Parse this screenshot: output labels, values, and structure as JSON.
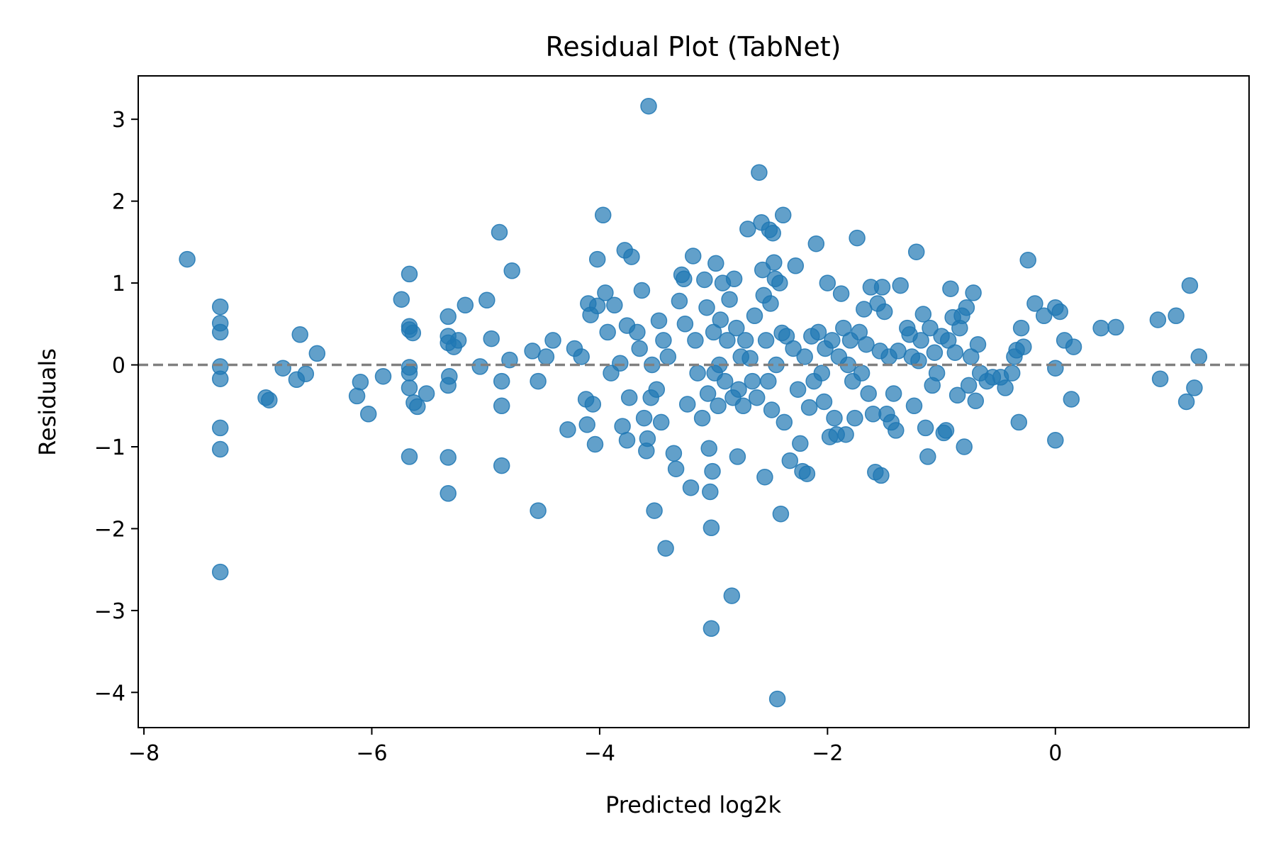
{
  "chart_data": {
    "type": "scatter",
    "title": "Residual Plot (TabNet)",
    "xlabel": "Predicted log2k",
    "ylabel": "Residuals",
    "xlim": [
      -8.05,
      1.7
    ],
    "ylim": [
      -4.43,
      3.53
    ],
    "xticks": [
      -8,
      -6,
      -4,
      -2,
      0
    ],
    "yticks": [
      -4,
      -3,
      -2,
      -1,
      0,
      1,
      2,
      3
    ],
    "xtick_labels": [
      "−8",
      "−6",
      "−4",
      "−2",
      "0"
    ],
    "ytick_labels": [
      "−4",
      "−3",
      "−2",
      "−1",
      "0",
      "1",
      "2",
      "3"
    ],
    "grid": false,
    "reference_line": {
      "y": 0,
      "style": "dashed",
      "color": "#808080"
    },
    "marker_color": "#1f77b4",
    "marker_alpha": 0.7,
    "points": [
      [
        -7.62,
        1.29
      ],
      [
        -7.33,
        0.71
      ],
      [
        -7.33,
        0.51
      ],
      [
        -7.33,
        0.4
      ],
      [
        -7.33,
        -0.02
      ],
      [
        -7.33,
        -0.17
      ],
      [
        -7.33,
        -0.77
      ],
      [
        -7.33,
        -1.03
      ],
      [
        -7.33,
        -2.53
      ],
      [
        -6.93,
        -0.4
      ],
      [
        -6.9,
        -0.43
      ],
      [
        -6.78,
        -0.04
      ],
      [
        -6.66,
        -0.18
      ],
      [
        -6.63,
        0.37
      ],
      [
        -6.58,
        -0.11
      ],
      [
        -6.48,
        0.14
      ],
      [
        -6.13,
        -0.38
      ],
      [
        -6.1,
        -0.21
      ],
      [
        -6.03,
        -0.6
      ],
      [
        -5.9,
        -0.14
      ],
      [
        -5.74,
        0.8
      ],
      [
        -5.67,
        1.11
      ],
      [
        -5.67,
        0.47
      ],
      [
        -5.67,
        0.43
      ],
      [
        -5.67,
        -0.03
      ],
      [
        -5.67,
        -0.1
      ],
      [
        -5.67,
        -0.28
      ],
      [
        -5.67,
        -1.12
      ],
      [
        -5.64,
        0.39
      ],
      [
        -5.63,
        -0.46
      ],
      [
        -5.6,
        -0.51
      ],
      [
        -5.52,
        -0.35
      ],
      [
        -5.33,
        0.59
      ],
      [
        -5.33,
        0.35
      ],
      [
        -5.33,
        0.27
      ],
      [
        -5.32,
        -0.14
      ],
      [
        -5.33,
        -0.25
      ],
      [
        -5.33,
        -1.13
      ],
      [
        -5.33,
        -1.57
      ],
      [
        -5.28,
        0.22
      ],
      [
        -5.24,
        0.3
      ],
      [
        -5.18,
        0.73
      ],
      [
        -5.05,
        -0.02
      ],
      [
        -4.99,
        0.79
      ],
      [
        -4.95,
        0.32
      ],
      [
        -4.88,
        1.62
      ],
      [
        -4.86,
        -0.2
      ],
      [
        -4.86,
        -0.5
      ],
      [
        -4.86,
        -1.23
      ],
      [
        -4.79,
        0.06
      ],
      [
        -4.77,
        1.15
      ],
      [
        -4.59,
        0.17
      ],
      [
        -4.54,
        -0.2
      ],
      [
        -4.54,
        -1.78
      ],
      [
        -4.47,
        0.1
      ],
      [
        -4.41,
        0.3
      ],
      [
        -4.28,
        -0.79
      ],
      [
        -4.22,
        0.2
      ],
      [
        -4.16,
        0.1
      ],
      [
        -4.12,
        -0.42
      ],
      [
        -4.11,
        -0.73
      ],
      [
        -4.1,
        0.75
      ],
      [
        -4.08,
        0.61
      ],
      [
        -4.06,
        -0.48
      ],
      [
        -4.04,
        -0.97
      ],
      [
        -4.02,
        0.72
      ],
      [
        -4.02,
        1.29
      ],
      [
        -3.97,
        1.83
      ],
      [
        -3.95,
        0.88
      ],
      [
        -3.93,
        0.4
      ],
      [
        -3.9,
        -0.1
      ],
      [
        -3.87,
        0.73
      ],
      [
        -3.82,
        0.02
      ],
      [
        -3.8,
        -0.75
      ],
      [
        -3.78,
        1.4
      ],
      [
        -3.76,
        0.48
      ],
      [
        -3.76,
        -0.92
      ],
      [
        -3.74,
        -0.4
      ],
      [
        -3.72,
        1.32
      ],
      [
        -3.67,
        0.4
      ],
      [
        -3.65,
        0.2
      ],
      [
        -3.63,
        0.91
      ],
      [
        -3.61,
        -0.65
      ],
      [
        -3.59,
        -1.05
      ],
      [
        -3.58,
        -0.9
      ],
      [
        -3.57,
        3.16
      ],
      [
        -3.55,
        -0.4
      ],
      [
        -3.54,
        0.0
      ],
      [
        -3.52,
        -1.78
      ],
      [
        -3.5,
        -0.3
      ],
      [
        -3.48,
        0.54
      ],
      [
        -3.46,
        -0.7
      ],
      [
        -3.44,
        0.3
      ],
      [
        -3.42,
        -2.24
      ],
      [
        -3.4,
        0.1
      ],
      [
        -3.35,
        -1.08
      ],
      [
        -3.33,
        -1.27
      ],
      [
        -3.3,
        0.78
      ],
      [
        -3.28,
        1.1
      ],
      [
        -3.26,
        1.05
      ],
      [
        -3.25,
        0.5
      ],
      [
        -3.23,
        -0.48
      ],
      [
        -3.2,
        -1.5
      ],
      [
        -3.18,
        1.33
      ],
      [
        -3.16,
        0.3
      ],
      [
        -3.14,
        -0.1
      ],
      [
        -3.1,
        -0.65
      ],
      [
        -3.08,
        1.04
      ],
      [
        -3.06,
        0.7
      ],
      [
        -3.05,
        -0.35
      ],
      [
        -3.04,
        -1.02
      ],
      [
        -3.03,
        -1.55
      ],
      [
        -3.02,
        -1.99
      ],
      [
        -3.02,
        -3.22
      ],
      [
        -3.01,
        -1.3
      ],
      [
        -3.0,
        0.4
      ],
      [
        -2.99,
        -0.1
      ],
      [
        -2.98,
        1.24
      ],
      [
        -2.96,
        -0.5
      ],
      [
        -2.95,
        0.0
      ],
      [
        -2.94,
        0.55
      ],
      [
        -2.92,
        1.0
      ],
      [
        -2.9,
        -0.2
      ],
      [
        -2.88,
        0.3
      ],
      [
        -2.86,
        0.8
      ],
      [
        -2.84,
        -2.82
      ],
      [
        -2.83,
        -0.4
      ],
      [
        -2.82,
        1.05
      ],
      [
        -2.8,
        0.45
      ],
      [
        -2.79,
        -1.12
      ],
      [
        -2.78,
        -0.3
      ],
      [
        -2.76,
        0.1
      ],
      [
        -2.74,
        -0.5
      ],
      [
        -2.72,
        0.3
      ],
      [
        -2.7,
        1.66
      ],
      [
        -2.68,
        0.08
      ],
      [
        -2.66,
        -0.2
      ],
      [
        -2.64,
        0.6
      ],
      [
        -2.62,
        -0.4
      ],
      [
        -2.6,
        2.35
      ],
      [
        -2.58,
        1.74
      ],
      [
        -2.57,
        1.16
      ],
      [
        -2.56,
        0.85
      ],
      [
        -2.55,
        -1.37
      ],
      [
        -2.54,
        0.3
      ],
      [
        -2.52,
        -0.2
      ],
      [
        -2.51,
        1.65
      ],
      [
        -2.5,
        0.75
      ],
      [
        -2.49,
        -0.55
      ],
      [
        -2.48,
        1.61
      ],
      [
        -2.47,
        1.25
      ],
      [
        -2.46,
        1.05
      ],
      [
        -2.45,
        0.0
      ],
      [
        -2.44,
        -4.08
      ],
      [
        -2.42,
        1.0
      ],
      [
        -2.41,
        -1.82
      ],
      [
        -2.4,
        0.39
      ],
      [
        -2.39,
        1.83
      ],
      [
        -2.38,
        -0.7
      ],
      [
        -2.36,
        0.35
      ],
      [
        -2.33,
        -1.17
      ],
      [
        -2.3,
        0.2
      ],
      [
        -2.28,
        1.21
      ],
      [
        -2.26,
        -0.3
      ],
      [
        -2.24,
        -0.96
      ],
      [
        -2.22,
        -1.3
      ],
      [
        -2.2,
        0.1
      ],
      [
        -2.18,
        -1.33
      ],
      [
        -2.16,
        -0.52
      ],
      [
        -2.14,
        0.35
      ],
      [
        -2.12,
        -0.2
      ],
      [
        -2.1,
        1.48
      ],
      [
        -2.08,
        0.4
      ],
      [
        -2.05,
        -0.1
      ],
      [
        -2.03,
        -0.45
      ],
      [
        -2.02,
        0.2
      ],
      [
        -2.0,
        1.0
      ],
      [
        -1.98,
        -0.88
      ],
      [
        -1.96,
        0.3
      ],
      [
        -1.94,
        -0.65
      ],
      [
        -1.92,
        -0.85
      ],
      [
        -1.9,
        0.1
      ],
      [
        -1.88,
        0.87
      ],
      [
        -1.86,
        0.45
      ],
      [
        -1.84,
        -0.85
      ],
      [
        -1.82,
        0.0
      ],
      [
        -1.8,
        0.3
      ],
      [
        -1.78,
        -0.2
      ],
      [
        -1.76,
        -0.65
      ],
      [
        -1.74,
        1.55
      ],
      [
        -1.72,
        0.4
      ],
      [
        -1.7,
        -0.1
      ],
      [
        -1.68,
        0.68
      ],
      [
        -1.66,
        0.25
      ],
      [
        -1.64,
        -0.35
      ],
      [
        -1.62,
        0.95
      ],
      [
        -1.6,
        -0.6
      ],
      [
        -1.58,
        -1.31
      ],
      [
        -1.56,
        0.75
      ],
      [
        -1.54,
        0.17
      ],
      [
        -1.53,
        -1.35
      ],
      [
        -1.52,
        0.95
      ],
      [
        -1.5,
        0.65
      ],
      [
        -1.48,
        -0.6
      ],
      [
        -1.46,
        0.1
      ],
      [
        -1.44,
        -0.7
      ],
      [
        -1.42,
        -0.35
      ],
      [
        -1.4,
        -0.8
      ],
      [
        -1.38,
        0.17
      ],
      [
        -1.36,
        0.97
      ],
      [
        -1.3,
        0.45
      ],
      [
        -1.28,
        0.37
      ],
      [
        -1.26,
        0.1
      ],
      [
        -1.24,
        -0.5
      ],
      [
        -1.22,
        1.38
      ],
      [
        -1.2,
        0.05
      ],
      [
        -1.18,
        0.3
      ],
      [
        -1.16,
        0.62
      ],
      [
        -1.14,
        -0.77
      ],
      [
        -1.12,
        -1.12
      ],
      [
        -1.1,
        0.45
      ],
      [
        -1.08,
        -0.25
      ],
      [
        -1.06,
        0.15
      ],
      [
        -1.04,
        -0.1
      ],
      [
        -1.0,
        0.35
      ],
      [
        -0.98,
        -0.83
      ],
      [
        -0.96,
        -0.8
      ],
      [
        -0.94,
        0.3
      ],
      [
        -0.92,
        0.93
      ],
      [
        -0.9,
        0.58
      ],
      [
        -0.88,
        0.15
      ],
      [
        -0.86,
        -0.37
      ],
      [
        -0.84,
        0.45
      ],
      [
        -0.82,
        0.6
      ],
      [
        -0.8,
        -1.0
      ],
      [
        -0.78,
        0.7
      ],
      [
        -0.76,
        -0.25
      ],
      [
        -0.74,
        0.1
      ],
      [
        -0.72,
        0.88
      ],
      [
        -0.7,
        -0.44
      ],
      [
        -0.68,
        0.25
      ],
      [
        -0.66,
        -0.1
      ],
      [
        -0.6,
        -0.2
      ],
      [
        -0.55,
        -0.15
      ],
      [
        -0.48,
        -0.15
      ],
      [
        -0.44,
        -0.28
      ],
      [
        -0.38,
        -0.1
      ],
      [
        -0.36,
        0.1
      ],
      [
        -0.34,
        0.18
      ],
      [
        -0.32,
        -0.7
      ],
      [
        -0.3,
        0.45
      ],
      [
        -0.28,
        0.22
      ],
      [
        -0.24,
        1.28
      ],
      [
        -0.18,
        0.75
      ],
      [
        -0.1,
        0.6
      ],
      [
        0.0,
        0.7
      ],
      [
        0.0,
        -0.04
      ],
      [
        0.0,
        -0.92
      ],
      [
        0.04,
        0.65
      ],
      [
        0.08,
        0.3
      ],
      [
        0.14,
        -0.42
      ],
      [
        0.16,
        0.22
      ],
      [
        0.4,
        0.45
      ],
      [
        0.53,
        0.46
      ],
      [
        0.9,
        0.55
      ],
      [
        0.92,
        -0.17
      ],
      [
        1.06,
        0.6
      ],
      [
        1.15,
        -0.45
      ],
      [
        1.18,
        0.97
      ],
      [
        1.22,
        -0.28
      ],
      [
        1.26,
        0.1
      ]
    ]
  }
}
